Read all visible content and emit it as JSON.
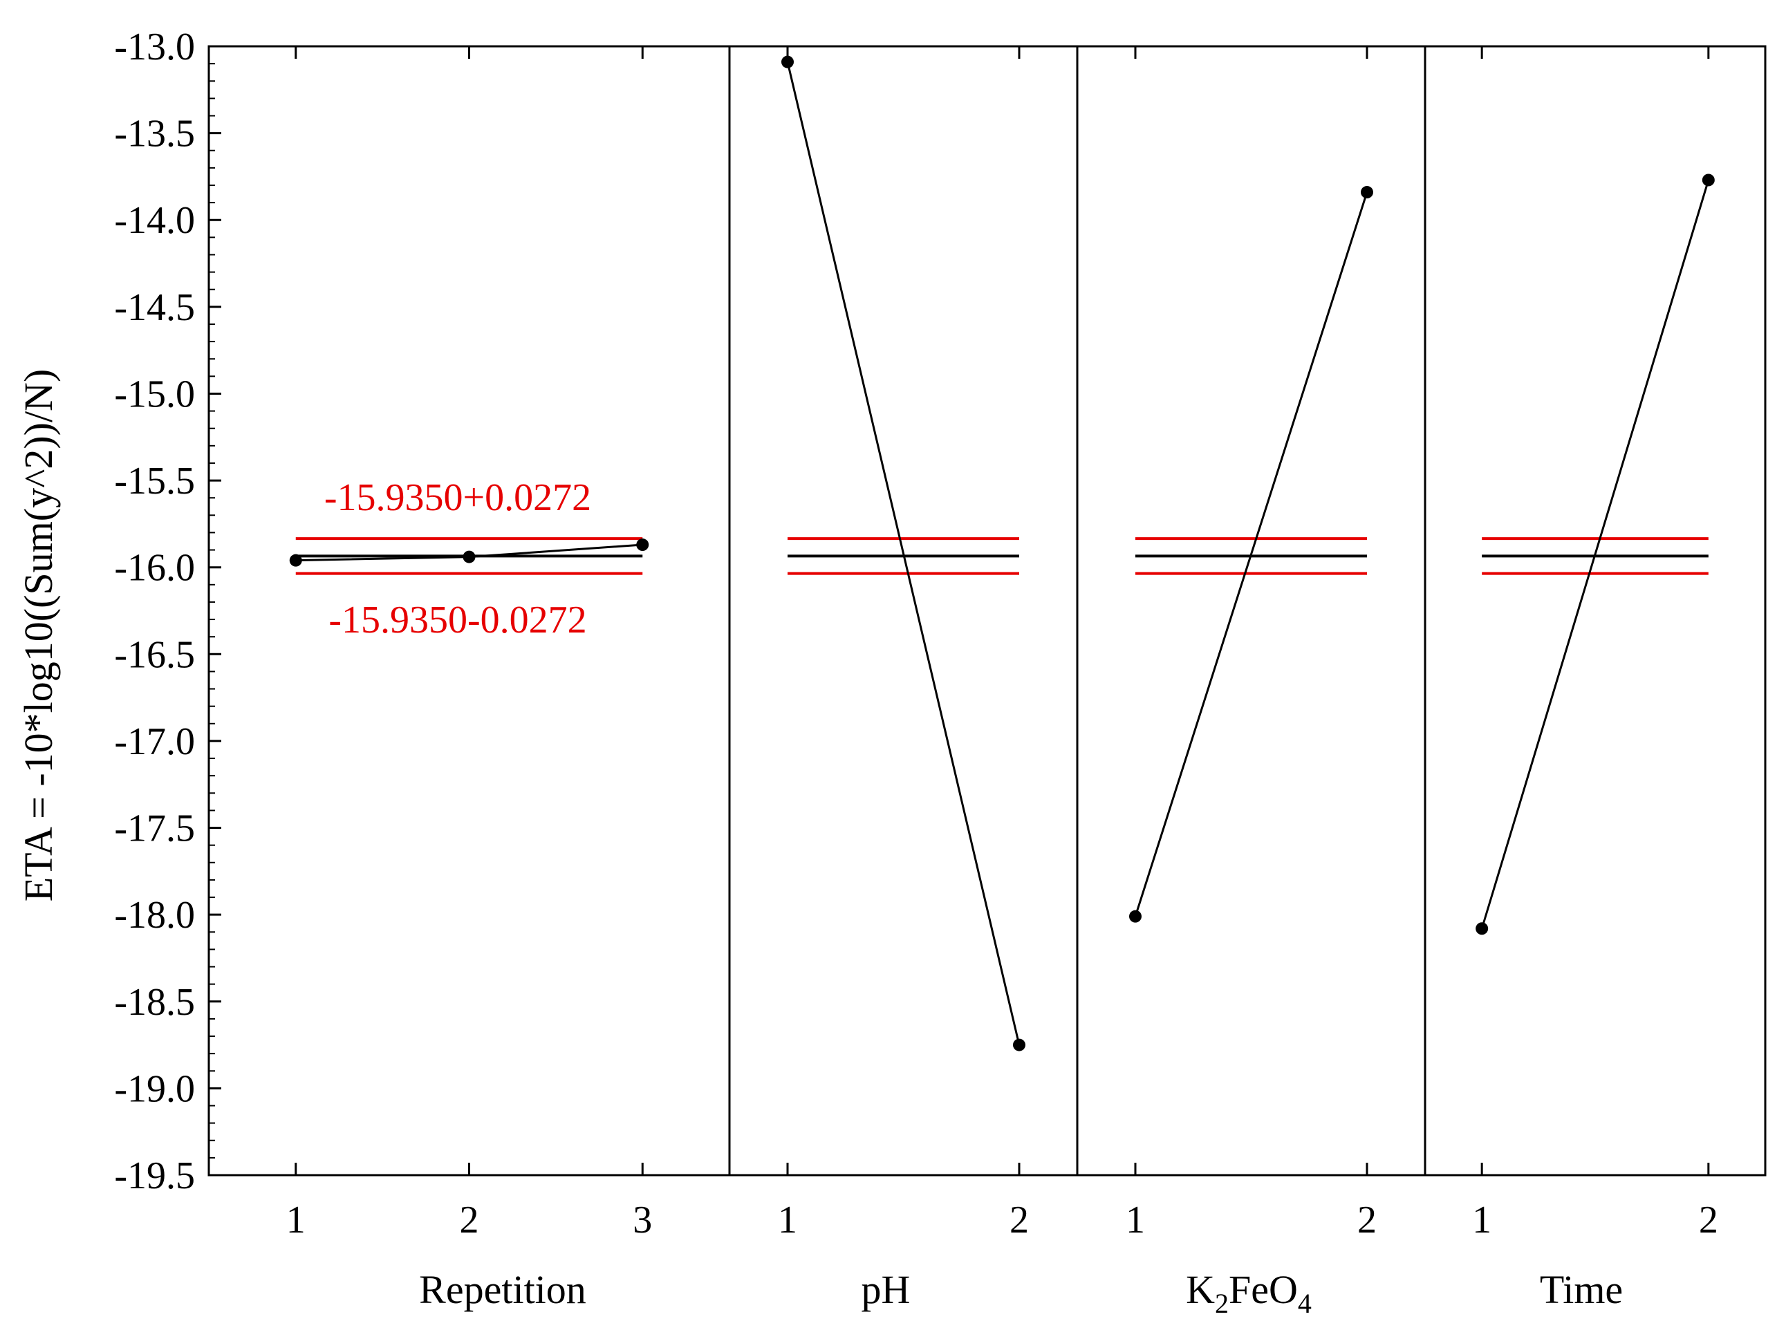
{
  "chart_data": {
    "type": "line",
    "ylabel": "ETA = -10*log10((Sum(y^2))/N)",
    "ylim": [
      -19.5,
      -13.0
    ],
    "yticks": [
      -13.0,
      -13.5,
      -14.0,
      -14.5,
      -15.0,
      -15.5,
      -16.0,
      -16.5,
      -17.0,
      -17.5,
      -18.0,
      -18.5,
      -19.0,
      -19.5
    ],
    "ytick_labels": [
      "-13.0",
      "-13.5",
      "-14.0",
      "-14.5",
      "-15.0",
      "-15.5",
      "-16.0",
      "-16.5",
      "-17.0",
      "-17.5",
      "-18.0",
      "-18.5",
      "-19.0",
      "-19.5"
    ],
    "grand_mean": -15.935,
    "ci_halfwidth": 0.0272,
    "mean_line_color": "#000000",
    "ci_line_color": "#e60000",
    "annotations": {
      "upper": "-15.9350+0.0272",
      "lower": "-15.9350-0.0272"
    },
    "panels": [
      {
        "factor": "Repetition",
        "factor_base": "Repetition",
        "factor_sub1": "",
        "factor_mid": "",
        "factor_sub2": "",
        "levels": [
          "1",
          "2",
          "3"
        ],
        "values": [
          -15.96,
          -15.94,
          -15.87
        ]
      },
      {
        "factor": "pH",
        "factor_base": "pH",
        "factor_sub1": "",
        "factor_mid": "",
        "factor_sub2": "",
        "levels": [
          "1",
          "2"
        ],
        "values": [
          -13.09,
          -18.75
        ]
      },
      {
        "factor": "K2FeO4",
        "factor_base": "K",
        "factor_sub1": "2",
        "factor_mid": "FeO",
        "factor_sub2": "4",
        "levels": [
          "1",
          "2"
        ],
        "values": [
          -18.01,
          -13.84
        ]
      },
      {
        "factor": "Time",
        "factor_base": "Time",
        "factor_sub1": "",
        "factor_mid": "",
        "factor_sub2": "",
        "levels": [
          "1",
          "2"
        ],
        "values": [
          -18.08,
          -13.77
        ]
      }
    ]
  }
}
